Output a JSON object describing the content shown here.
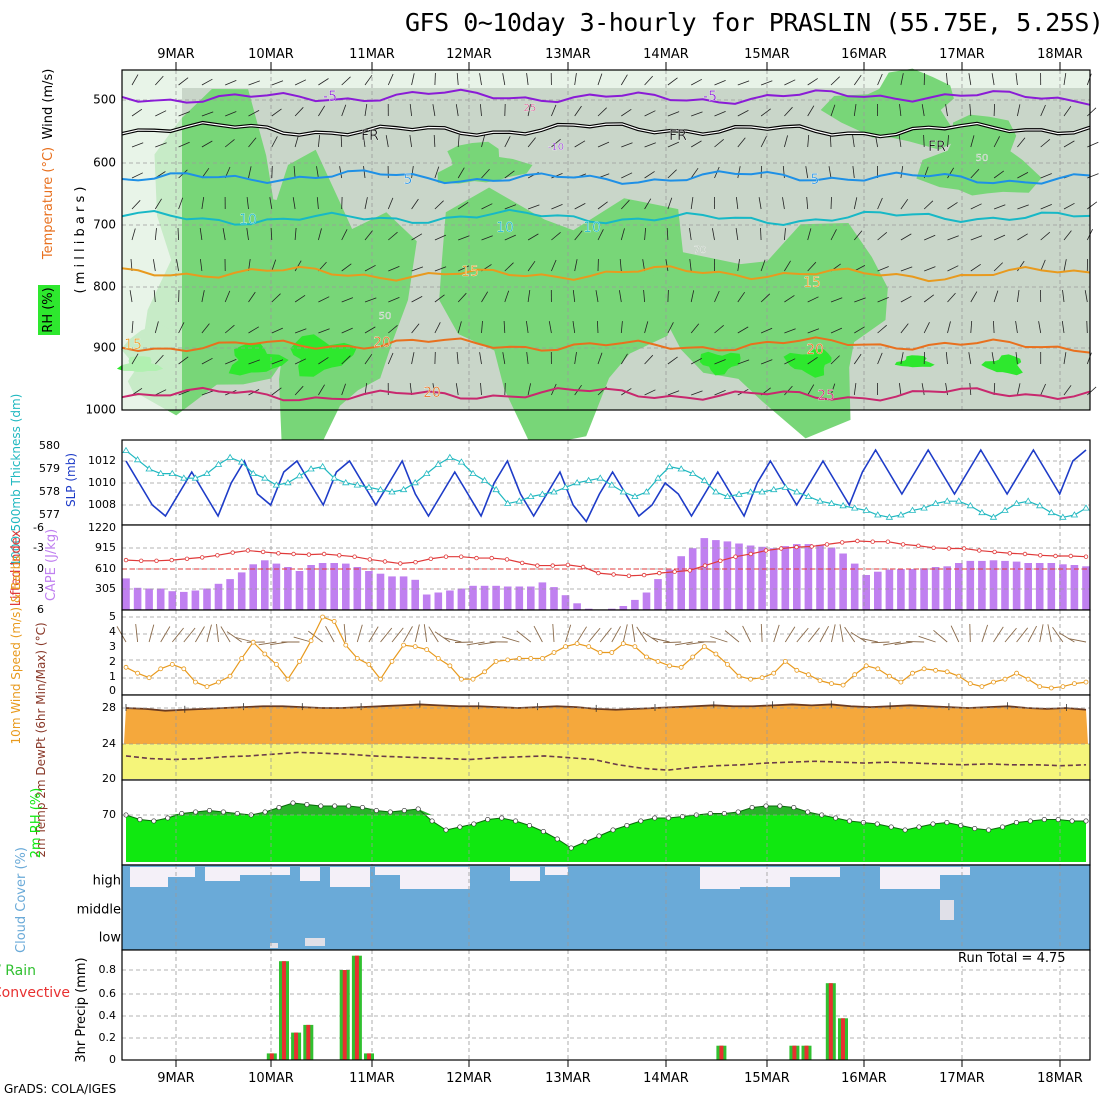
{
  "title": "GFS 0~10day 3-hourly for PRASLIN (55.75E, 5.25S)",
  "footer": "GrADS: COLA/IGES",
  "run_total": "Run Total = 4.75",
  "date_labels": [
    "9MAR",
    "10MAR",
    "11MAR",
    "12MAR",
    "13MAR",
    "14MAR",
    "15MAR",
    "16MAR",
    "17MAR",
    "18MAR"
  ],
  "colors": {
    "rh_light": "#e8f3e8",
    "rh_gray": "#c9d6c9",
    "rh_mid": "#78d678",
    "rh_bright": "#2ee82e",
    "temp_purple": "#8a1bd6",
    "temp_blue": "#1e90e6",
    "temp_cyan": "#17b8c6",
    "temp_orange": "#e89a1e",
    "temp_darkorange": "#e8701e",
    "temp_red": "#c8286e",
    "slp_blue": "#1e3cc8",
    "thick_cyan": "#20b8c0",
    "cape_purple": "#c080f0",
    "li_red": "#e03a3a",
    "wind_orange": "#e89a1e",
    "temp_fill": "#f5a83c",
    "dew_fill": "#f5f57a",
    "rh2m_green": "#10e810",
    "cloud_blue": "#6aaad8",
    "precip_green": "#30c030",
    "precip_red": "#e83030"
  },
  "chart_data": [
    {
      "type": "heatmap",
      "panel": "upper-air",
      "ylabel_left": "Wind (m/s)",
      "ylabel_temp": "Temperature (°C)",
      "ylabel_rh": "RH (%)",
      "ylabel_p": "( m i l l i b a r s )",
      "y_ticks": [
        "500",
        "600",
        "700",
        "800",
        "900",
        "1000"
      ],
      "ylim": [
        1000,
        450
      ],
      "isotherms": [
        {
          "label": "-5",
          "level_mb": 495,
          "color": "temp_purple"
        },
        {
          "label": "FR",
          "level_mb": 548,
          "color": "black"
        },
        {
          "label": "5",
          "level_mb": 625,
          "color": "temp_blue"
        },
        {
          "label": "10",
          "level_mb": 690,
          "color": "temp_cyan"
        },
        {
          "label": "15",
          "level_mb": 780,
          "color": "temp_orange"
        },
        {
          "label": "20",
          "level_mb": 895,
          "color": "temp_darkorange"
        },
        {
          "label": "25",
          "level_mb": 975,
          "color": "temp_red"
        }
      ],
      "inline_labels": [
        "-5",
        "-5",
        "FR",
        "FR",
        "FR",
        "5",
        "5",
        "10",
        "10",
        "10",
        "15",
        "15",
        "15",
        "20",
        "20",
        "20",
        "25",
        "25",
        "-10",
        "50",
        "50",
        "70"
      ]
    },
    {
      "type": "line",
      "panel": "thickness-slp",
      "ylabel": "1000-500mb Thickness (dm)",
      "ylabel2": "SLP (mb)",
      "y_ticks_left": [
        "580",
        "579",
        "578",
        "577"
      ],
      "y_ticks_right": [
        "1012",
        "1010",
        "1008"
      ],
      "series": [
        {
          "name": "SLP (mb)",
          "values": [
            1012,
            1010,
            1008,
            1007,
            1009,
            1011,
            1009,
            1007,
            1010,
            1012,
            1009,
            1008,
            1011,
            1012,
            1010,
            1008,
            1011,
            1012,
            1010,
            1008,
            1010,
            1012,
            1009,
            1007,
            1009,
            1011,
            1009,
            1007,
            1010,
            1012,
            1009,
            1007,
            1009,
            1011,
            1008,
            1006.5,
            1009,
            1011,
            1009,
            1007,
            1008,
            1010,
            1009,
            1007,
            1009,
            1011,
            1009,
            1007,
            1010,
            1012,
            1010,
            1008,
            1010,
            1012,
            1010,
            1008,
            1011,
            1013,
            1011,
            1009,
            1011,
            1013,
            1011,
            1009,
            1011,
            1013,
            1011,
            1009,
            1011,
            1013,
            1011,
            1009,
            1012,
            1013
          ]
        },
        {
          "name": "1000-500mb Thickness (dm)",
          "values": [
            579.8,
            579.4,
            579.0,
            578.8,
            578.8,
            578.6,
            578.6,
            578.8,
            579.2,
            579.5,
            579.3,
            578.8,
            578.6,
            578.3,
            578.4,
            578.7,
            579.0,
            579.1,
            578.6,
            578.4,
            578.3,
            578.2,
            578.1,
            578.0,
            578.1,
            578.4,
            578.8,
            579.2,
            579.5,
            579.3,
            578.8,
            578.5,
            578.1,
            577.5,
            577.6,
            577.8,
            577.9,
            578.0,
            578.2,
            578.4,
            578.5,
            578.6,
            578.3,
            578.0,
            577.8,
            578.0,
            578.6,
            579.1,
            579.0,
            578.8,
            578.5,
            578.0,
            577.8,
            577.9,
            578.0,
            578.0,
            578.1,
            578.2,
            578.0,
            577.8,
            577.6,
            577.5,
            577.4,
            577.3,
            577.2,
            577.0,
            576.9,
            577.0,
            577.2,
            577.3,
            577.5,
            577.6,
            577.6,
            577.4,
            577.1,
            576.9,
            577.2,
            577.5,
            577.6,
            577.4,
            577.1,
            576.9,
            577.0,
            577.3
          ]
        }
      ]
    },
    {
      "type": "bar",
      "panel": "cape-li",
      "ylabel": "Lifted Index",
      "ylabel2": "CAPE (J/kg)",
      "y_ticks_left": [
        "-6",
        "-3",
        "0",
        "3",
        "6"
      ],
      "y_ticks_right": [
        "1220",
        "915",
        "610",
        "305"
      ],
      "series": [
        {
          "name": "CAPE (J/kg)",
          "values": [
            470,
            330,
            320,
            320,
            280,
            270,
            290,
            320,
            390,
            460,
            560,
            680,
            740,
            690,
            640,
            580,
            670,
            700,
            700,
            690,
            640,
            580,
            540,
            500,
            500,
            450,
            230,
            260,
            290,
            320,
            360,
            360,
            360,
            350,
            350,
            350,
            410,
            340,
            220,
            100,
            20,
            0,
            20,
            60,
            150,
            260,
            460,
            600,
            800,
            920,
            1070,
            1040,
            1020,
            990,
            960,
            940,
            920,
            950,
            980,
            980,
            970,
            930,
            840,
            690,
            520,
            570,
            600,
            610,
            610,
            620,
            640,
            650,
            700,
            730,
            730,
            740,
            730,
            720,
            700,
            700,
            700,
            680,
            670,
            650
          ]
        },
        {
          "name": "Lifted Index",
          "values": [
            -1.3,
            -1.2,
            -1.2,
            -1.3,
            -1.5,
            -1.7,
            -2.0,
            -2.4,
            -2.7,
            -2.5,
            -2.3,
            -2.2,
            -2.1,
            -2.2,
            -2.0,
            -1.8,
            -1.4,
            -1.1,
            -0.8,
            -1.0,
            -1.5,
            -1.8,
            -1.8,
            -1.6,
            -1.6,
            -1.4,
            -0.9,
            -0.5,
            -0.5,
            -0.6,
            -0.3,
            0.6,
            0.8,
            1.0,
            0.9,
            0.6,
            0.4,
            0.2,
            -0.5,
            -1.2,
            -1.8,
            -2.2,
            -2.7,
            -3.0,
            -3.2,
            -3.3,
            -3.6,
            -3.9,
            -4.1,
            -4.0,
            -4.0,
            -3.6,
            -3.4,
            -3.1,
            -3.0,
            -3.0,
            -2.7,
            -2.5,
            -2.3,
            -2.2,
            -2.0,
            -1.9,
            -1.9,
            -1.8
          ]
        }
      ]
    },
    {
      "type": "line",
      "panel": "wind-10m",
      "ylabel": "10m Wind Speed (m/s) & Barbs",
      "y_ticks": [
        "5",
        "4",
        "3",
        "2",
        "1",
        "0"
      ],
      "ylim": [
        0,
        5
      ],
      "series": [
        {
          "name": "10m Wind Speed",
          "values": [
            1.6,
            1.2,
            0.9,
            1.5,
            1.8,
            1.5,
            0.6,
            0.3,
            0.6,
            1.0,
            2.2,
            3.3,
            2.5,
            1.8,
            0.8,
            2.0,
            3.4,
            5.0,
            4.7,
            3.1,
            2.2,
            1.8,
            0.8,
            2.0,
            3.1,
            3.0,
            2.8,
            2.2,
            1.7,
            0.8,
            0.8,
            1.3,
            2.0,
            2.1,
            2.2,
            2.2,
            2.2,
            2.6,
            3.0,
            3.2,
            3.0,
            2.6,
            2.6,
            3.2,
            3.0,
            2.3,
            2.0,
            1.7,
            1.6,
            2.3,
            3.0,
            2.5,
            1.8,
            1.0,
            0.8,
            0.9,
            1.2,
            2.0,
            1.4,
            1.1,
            0.7,
            0.5,
            0.4,
            1.1,
            1.7,
            1.5,
            1.0,
            0.6,
            1.2,
            1.5,
            1.4,
            1.3,
            1.0,
            0.5,
            0.3,
            0.6,
            0.8,
            1.2,
            0.8,
            0.3,
            0.2,
            0.3,
            0.5,
            0.6
          ]
        }
      ]
    },
    {
      "type": "area",
      "panel": "temp-2m",
      "ylabel": "2m Temp 2m DewPt (6hr Min/Max) (°C)",
      "y_ticks": [
        "28",
        "24",
        "20"
      ],
      "ylim": [
        20,
        29
      ],
      "series": [
        {
          "name": "2m Temp",
          "values": [
            28.0,
            27.9,
            27.7,
            27.8,
            27.9,
            28.0,
            28.1,
            28.2,
            28.2,
            28.1,
            28.0,
            28.0,
            28.1,
            28.2,
            28.3,
            28.4,
            28.3,
            28.2,
            28.2,
            28.1,
            28.0,
            28.1,
            28.2,
            28.1,
            27.9,
            27.8,
            27.9,
            28.0,
            28.1,
            28.2,
            28.3,
            28.2,
            28.2,
            28.3,
            28.4,
            28.3,
            28.4,
            28.2,
            28.1,
            28.2,
            28.3,
            28.2,
            28.1,
            28.0,
            28.1,
            28.2,
            28.0,
            27.9,
            28.0,
            27.8
          ]
        },
        {
          "name": "2m DewPt",
          "values": [
            22.6,
            22.3,
            22.2,
            22.3,
            22.5,
            22.6,
            22.8,
            23.0,
            22.9,
            22.8,
            22.6,
            22.5,
            22.4,
            22.3,
            22.2,
            22.4,
            22.5,
            22.6,
            22.4,
            22.2,
            21.6,
            21.2,
            21.0,
            21.3,
            21.5,
            21.6,
            21.8,
            21.9,
            22.0,
            21.9,
            21.8,
            21.9,
            21.8,
            21.7,
            21.6,
            21.7,
            21.6,
            21.6,
            21.5,
            21.6
          ]
        }
      ]
    },
    {
      "type": "area",
      "panel": "rh-2m",
      "ylabel": "2m RH (%)",
      "y_ticks": [
        "70"
      ],
      "series": [
        {
          "name": "2m RH",
          "values": [
            70,
            67,
            66,
            68,
            71,
            72,
            73,
            72,
            71,
            70,
            72,
            75,
            78,
            77,
            76,
            76,
            76,
            75,
            73,
            72,
            73,
            74,
            66,
            60,
            62,
            64,
            67,
            68,
            66,
            63,
            59,
            54,
            48,
            52,
            56,
            60,
            63,
            66,
            68,
            68,
            69,
            70,
            71,
            71,
            72,
            75,
            76,
            76,
            75,
            72,
            70,
            68,
            66,
            65,
            64,
            62,
            60,
            62,
            64,
            65,
            63,
            61,
            60,
            62,
            65,
            66,
            67,
            67,
            66,
            66
          ]
        }
      ]
    },
    {
      "type": "area",
      "panel": "cloud-cover",
      "ylabel": "Cloud Cover (%)",
      "y_ticks": [
        "high",
        "middle",
        "low"
      ]
    },
    {
      "type": "bar",
      "panel": "precip",
      "ylabel": "3hr Precip (mm)",
      "ylabel2": "Total / Rain Convective",
      "y_ticks": [
        "0.8",
        "0.6",
        "0.4",
        "0.2",
        "0"
      ],
      "ylim": [
        0,
        0.98
      ],
      "series": [
        {
          "name": "Total / Rain",
          "values": [
            0,
            0,
            0,
            0,
            0,
            0,
            0,
            0,
            0,
            0,
            0,
            0,
            0.06,
            0.9,
            0.25,
            0.32,
            0,
            0,
            0.82,
            0.95,
            0.06,
            0,
            0,
            0,
            0,
            0,
            0,
            0,
            0,
            0,
            0,
            0,
            0,
            0,
            0,
            0,
            0,
            0,
            0,
            0,
            0,
            0,
            0,
            0,
            0,
            0,
            0,
            0,
            0,
            0.13,
            0,
            0,
            0,
            0,
            0,
            0.13,
            0.13,
            0,
            0.7,
            0.38,
            0,
            0,
            0,
            0,
            0,
            0,
            0,
            0,
            0,
            0,
            0,
            0,
            0,
            0,
            0,
            0,
            0,
            0,
            0,
            0
          ]
        }
      ]
    }
  ]
}
